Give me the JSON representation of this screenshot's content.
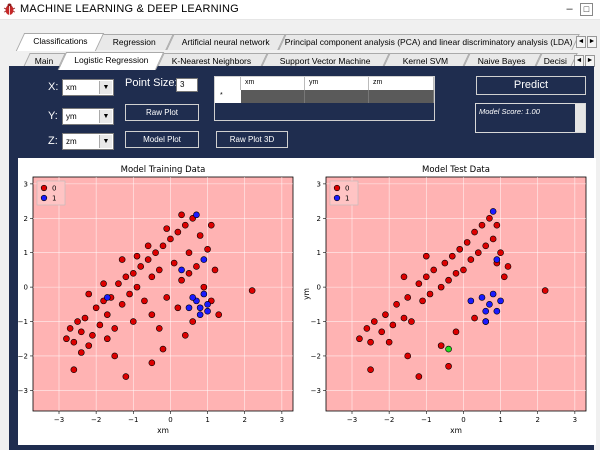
{
  "window": {
    "title": "MACHINE LEARNING & DEEP LEARNING",
    "minimize": "–",
    "maximize": "□"
  },
  "colors": {
    "panel": "#1f2d4f",
    "plot_bg": "#ffb3b3",
    "class0": "#dd0000",
    "class1": "#1a1aff",
    "highlight": "#22dd22"
  },
  "top_tabs": [
    {
      "label": "Classifications",
      "active": true
    },
    {
      "label": "Regression",
      "active": false
    },
    {
      "label": "Artificial neural network",
      "active": false
    },
    {
      "label": "Principal component analysis (PCA) and linear discriminatory analysis (LDA)",
      "active": false
    }
  ],
  "sub_tabs": [
    {
      "label": "Main",
      "active": false
    },
    {
      "label": "Logistic Regression",
      "active": true
    },
    {
      "label": "K-Nearest Neighbors",
      "active": false
    },
    {
      "label": "Support Vector Machine",
      "active": false
    },
    {
      "label": "Kernel SVM",
      "active": false
    },
    {
      "label": "Naive Bayes",
      "active": false
    },
    {
      "label": "Decisi",
      "active": false
    }
  ],
  "arrows": {
    "left": "◄",
    "right": "►"
  },
  "controls": {
    "x_label": "X:",
    "x_value": "xm",
    "y_label": "Y:",
    "y_value": "ym",
    "z_label": "Z:",
    "z_value": "zm",
    "dropdown_glyph": "▼",
    "point_size_label": "Point Size:",
    "point_size_value": "3",
    "raw_plot": "Raw Plot",
    "model_plot": "Model Plot",
    "raw_plot_3d": "Raw Plot 3D",
    "predict": "Predict",
    "model_score": "Model Score: 1.00"
  },
  "input_grid": {
    "columns": [
      "xm",
      "ym",
      "zm"
    ],
    "row_marker": "*"
  },
  "chart_data": [
    {
      "type": "scatter",
      "title": "Model Training Data",
      "xlabel": "xm",
      "ylabel": "ym",
      "xlim": [
        -3.7,
        3.3
      ],
      "ylim": [
        -3.6,
        3.2
      ],
      "xticks": [
        -3,
        -2,
        -1,
        0,
        1,
        2,
        3
      ],
      "yticks": [
        -3,
        -2,
        -1,
        0,
        1,
        2,
        3
      ],
      "grid": true,
      "legend": {
        "position": "top-left",
        "entries": [
          "0",
          "1"
        ]
      },
      "series": [
        {
          "name": "0",
          "color": "#dd0000",
          "points": [
            [
              -2.8,
              -1.5
            ],
            [
              -2.7,
              -1.2
            ],
            [
              -2.6,
              -1.6
            ],
            [
              -2.5,
              -1.0
            ],
            [
              -2.4,
              -1.3
            ],
            [
              -2.3,
              -0.9
            ],
            [
              -2.2,
              -1.7
            ],
            [
              -2.1,
              -1.4
            ],
            [
              -2.0,
              -0.6
            ],
            [
              -1.9,
              -1.1
            ],
            [
              -1.8,
              -0.4
            ],
            [
              -1.7,
              -0.8
            ],
            [
              -1.6,
              -0.3
            ],
            [
              -1.5,
              -1.2
            ],
            [
              -1.4,
              0.1
            ],
            [
              -1.3,
              -0.5
            ],
            [
              -1.2,
              0.3
            ],
            [
              -1.1,
              -0.2
            ],
            [
              -1.0,
              0.4
            ],
            [
              -0.9,
              0.0
            ],
            [
              -0.8,
              0.6
            ],
            [
              -0.7,
              -0.4
            ],
            [
              -0.6,
              0.8
            ],
            [
              -0.5,
              0.3
            ],
            [
              -0.4,
              1.0
            ],
            [
              -0.3,
              0.5
            ],
            [
              -0.2,
              1.2
            ],
            [
              -0.1,
              -0.3
            ],
            [
              0.0,
              1.4
            ],
            [
              0.1,
              0.7
            ],
            [
              0.2,
              1.6
            ],
            [
              0.3,
              0.2
            ],
            [
              0.4,
              1.8
            ],
            [
              0.5,
              1.0
            ],
            [
              0.6,
              2.0
            ],
            [
              0.7,
              0.6
            ],
            [
              0.8,
              1.5
            ],
            [
              0.9,
              0.0
            ],
            [
              1.0,
              1.1
            ],
            [
              1.1,
              -0.4
            ],
            [
              1.2,
              0.5
            ],
            [
              1.3,
              -0.8
            ],
            [
              -2.2,
              -0.2
            ],
            [
              -1.8,
              0.1
            ],
            [
              -1.3,
              0.8
            ],
            [
              -0.9,
              0.9
            ],
            [
              -0.6,
              1.2
            ],
            [
              -0.1,
              1.7
            ],
            [
              0.3,
              2.1
            ],
            [
              -1.0,
              -1.0
            ],
            [
              -0.5,
              -0.8
            ],
            [
              0.2,
              -0.6
            ],
            [
              0.6,
              -1.0
            ],
            [
              -1.5,
              -2.0
            ],
            [
              -2.6,
              -2.4
            ],
            [
              -1.2,
              -2.6
            ],
            [
              -0.2,
              -1.8
            ],
            [
              0.4,
              -1.4
            ],
            [
              2.2,
              -0.1
            ],
            [
              -0.5,
              -2.2
            ],
            [
              0.5,
              0.4
            ],
            [
              -0.3,
              -1.2
            ],
            [
              1.1,
              1.8
            ],
            [
              -2.4,
              -1.9
            ],
            [
              -1.7,
              -1.5
            ]
          ]
        },
        {
          "name": "1",
          "color": "#1a1aff",
          "points": [
            [
              0.7,
              -0.4
            ],
            [
              0.8,
              -0.6
            ],
            [
              0.9,
              -0.2
            ],
            [
              1.0,
              -0.5
            ],
            [
              0.8,
              -0.8
            ],
            [
              0.6,
              -0.3
            ],
            [
              0.3,
              0.5
            ],
            [
              0.7,
              2.1
            ],
            [
              1.0,
              -0.7
            ],
            [
              -1.7,
              -0.3
            ],
            [
              0.9,
              0.8
            ],
            [
              0.5,
              -0.6
            ]
          ]
        }
      ]
    },
    {
      "type": "scatter",
      "title": "Model Test Data",
      "xlabel": "xm",
      "ylabel": "ym",
      "xlim": [
        -3.7,
        3.3
      ],
      "ylim": [
        -3.6,
        3.2
      ],
      "xticks": [
        -3,
        -2,
        -1,
        0,
        1,
        2,
        3
      ],
      "yticks": [
        -3,
        -2,
        -1,
        0,
        1,
        2,
        3
      ],
      "grid": true,
      "legend": {
        "position": "top-left",
        "entries": [
          "0",
          "1"
        ]
      },
      "series": [
        {
          "name": "0",
          "color": "#dd0000",
          "points": [
            [
              -2.8,
              -1.5
            ],
            [
              -2.6,
              -1.2
            ],
            [
              -2.5,
              -1.6
            ],
            [
              -2.4,
              -1.0
            ],
            [
              -2.2,
              -1.3
            ],
            [
              -2.1,
              -0.8
            ],
            [
              -2.0,
              -1.6
            ],
            [
              -1.9,
              -1.1
            ],
            [
              -1.8,
              -0.5
            ],
            [
              -1.6,
              -0.9
            ],
            [
              -1.5,
              -0.3
            ],
            [
              -1.4,
              -1.0
            ],
            [
              -1.2,
              0.1
            ],
            [
              -1.1,
              -0.4
            ],
            [
              -1.0,
              0.3
            ],
            [
              -0.9,
              -0.2
            ],
            [
              -0.8,
              0.5
            ],
            [
              -0.6,
              0.0
            ],
            [
              -0.5,
              0.7
            ],
            [
              -0.4,
              0.2
            ],
            [
              -0.3,
              0.9
            ],
            [
              -0.2,
              0.4
            ],
            [
              -0.1,
              1.1
            ],
            [
              0.0,
              0.5
            ],
            [
              0.1,
              1.3
            ],
            [
              0.2,
              0.8
            ],
            [
              0.3,
              1.6
            ],
            [
              0.4,
              1.0
            ],
            [
              0.5,
              1.8
            ],
            [
              0.6,
              1.2
            ],
            [
              0.7,
              2.0
            ],
            [
              0.8,
              1.4
            ],
            [
              0.9,
              0.7
            ],
            [
              1.0,
              1.0
            ],
            [
              1.1,
              0.3
            ],
            [
              1.2,
              0.6
            ],
            [
              -1.5,
              -2.0
            ],
            [
              -2.5,
              -2.4
            ],
            [
              -1.2,
              -2.6
            ],
            [
              -0.6,
              -1.7
            ],
            [
              0.3,
              -0.9
            ],
            [
              -0.2,
              -1.3
            ],
            [
              2.2,
              -0.1
            ],
            [
              -0.4,
              -2.3
            ],
            [
              0.6,
              -1.0
            ],
            [
              -1.6,
              0.3
            ],
            [
              -1.0,
              0.9
            ],
            [
              0.9,
              1.8
            ]
          ]
        },
        {
          "name": "1",
          "color": "#1a1aff",
          "points": [
            [
              0.7,
              -0.5
            ],
            [
              0.8,
              -0.2
            ],
            [
              1.0,
              -0.4
            ],
            [
              0.6,
              -0.7
            ],
            [
              0.5,
              -0.3
            ],
            [
              0.2,
              -0.4
            ],
            [
              0.9,
              -0.7
            ],
            [
              0.8,
              2.2
            ],
            [
              0.9,
              0.8
            ],
            [
              0.6,
              -1.0
            ]
          ]
        },
        {
          "name": "",
          "color": "#22dd22",
          "points": [
            [
              -0.4,
              -1.8
            ]
          ]
        }
      ]
    }
  ]
}
